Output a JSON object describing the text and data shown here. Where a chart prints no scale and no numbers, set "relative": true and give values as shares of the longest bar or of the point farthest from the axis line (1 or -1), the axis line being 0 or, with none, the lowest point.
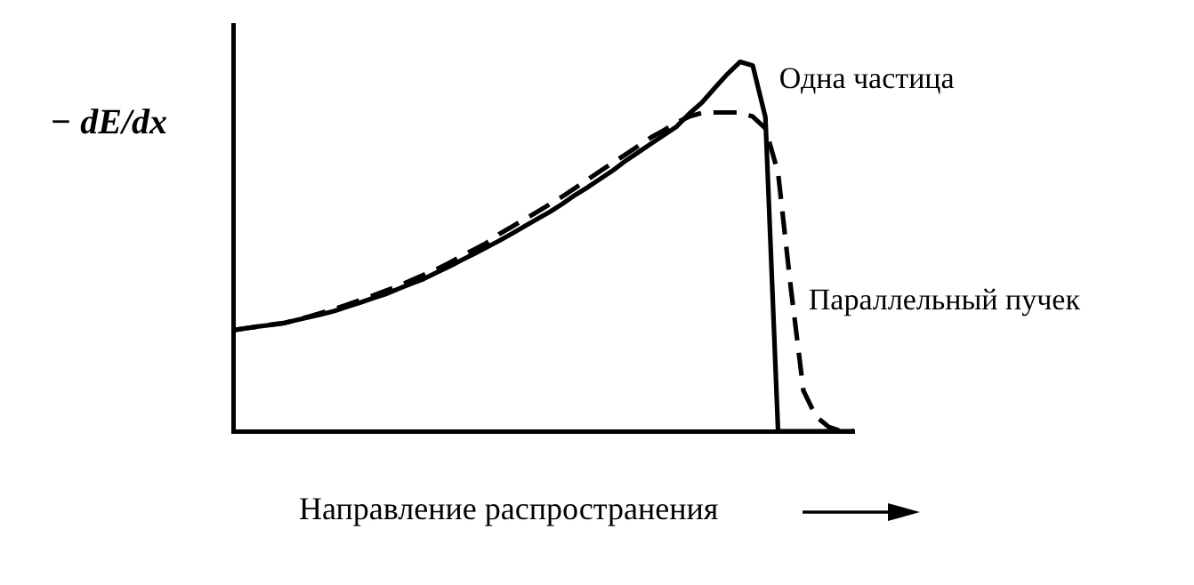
{
  "chart_data": {
    "type": "line",
    "relative": true,
    "xlabel": "Направление распространения",
    "ylabel": "− dE/dx",
    "grid": false,
    "legend": false,
    "marker": "none",
    "categories": [
      null,
      null,
      null,
      null,
      null,
      null,
      null,
      null,
      null,
      null,
      null,
      null,
      null,
      null,
      null,
      null,
      null,
      null,
      null,
      null,
      null,
      null,
      null,
      null,
      null,
      null,
      null,
      null,
      null,
      null,
      null,
      null,
      null,
      null,
      null,
      null,
      null,
      null,
      null,
      null,
      null,
      null,
      null,
      null,
      null,
      null,
      null,
      null,
      null,
      null
    ],
    "series": [
      {
        "name": "Одна частица",
        "color": "#000000",
        "line_style": "solid",
        "values": [
          0.274,
          0.279,
          0.284,
          0.288,
          0.293,
          0.301,
          0.309,
          0.317,
          0.326,
          0.337,
          0.348,
          0.36,
          0.371,
          0.385,
          0.399,
          0.412,
          0.429,
          0.445,
          0.463,
          0.48,
          0.498,
          0.516,
          0.535,
          0.555,
          0.575,
          0.594,
          0.616,
          0.64,
          0.661,
          0.684,
          0.707,
          0.733,
          0.756,
          0.779,
          0.802,
          0.825,
          0.86,
          0.89,
          0.929,
          0.967,
          1,
          0.99,
          0.85,
          0,
          0,
          0,
          0,
          0,
          0,
          0
        ]
      },
      {
        "name": "Параллельный пучек",
        "color": "#000000",
        "line_style": "dashed",
        "values": [
          0.274,
          0.279,
          0.284,
          0.289,
          0.293,
          0.302,
          0.311,
          0.321,
          0.331,
          0.343,
          0.355,
          0.367,
          0.38,
          0.393,
          0.408,
          0.423,
          0.438,
          0.455,
          0.474,
          0.492,
          0.51,
          0.534,
          0.554,
          0.574,
          0.594,
          0.615,
          0.636,
          0.659,
          0.682,
          0.705,
          0.728,
          0.75,
          0.773,
          0.796,
          0.815,
          0.836,
          0.852,
          0.862,
          0.863,
          0.863,
          0.863,
          0.852,
          0.82,
          0.7,
          0.39,
          0.11,
          0.04,
          0.012,
          0,
          0
        ]
      }
    ]
  }
}
